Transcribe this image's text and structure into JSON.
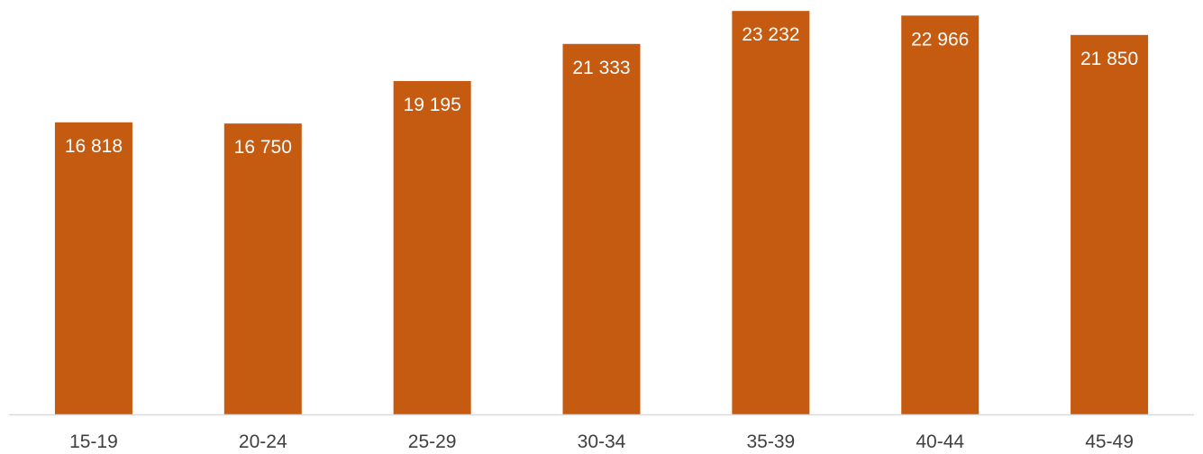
{
  "chart_data": {
    "type": "bar",
    "categories": [
      "15-19",
      "20-24",
      "25-29",
      "30-34",
      "35-39",
      "40-44",
      "45-49"
    ],
    "values": [
      16818,
      16750,
      19195,
      21333,
      23232,
      22966,
      21850
    ],
    "data_labels": [
      "16 818",
      "16 750",
      "19 195",
      "21 333",
      "23 232",
      "22 966",
      "21 850"
    ],
    "title": "",
    "xlabel": "",
    "ylabel": "",
    "ylim": [
      0,
      23500
    ],
    "grid": false,
    "legend": "none",
    "colors": {
      "bar": "#C55A11",
      "axis": "#D9D9D9",
      "tick_text": "#404040",
      "data_label_text": "#FFFFFF"
    }
  }
}
